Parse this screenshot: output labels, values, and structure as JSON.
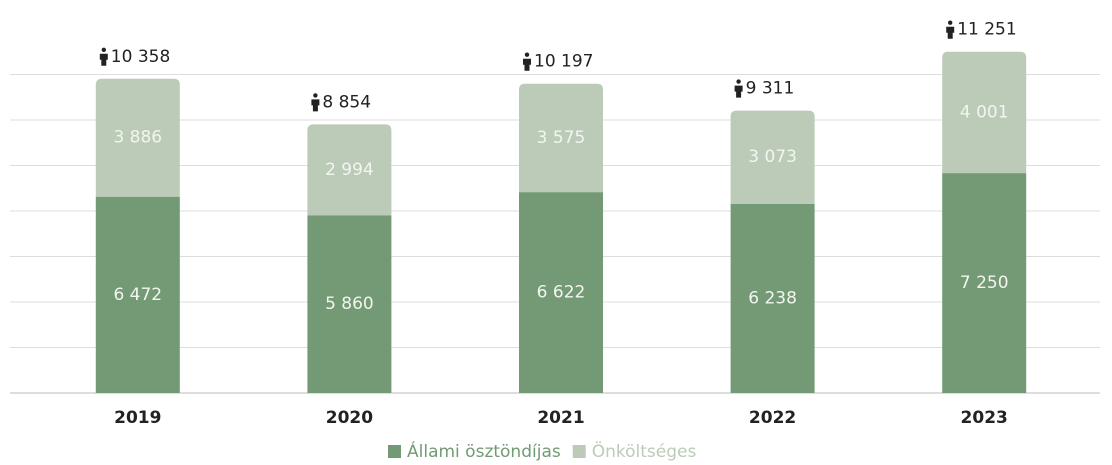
{
  "chart_data": {
    "type": "stacked_bar",
    "categories": [
      "2019",
      "2020",
      "2021",
      "2022",
      "2023"
    ],
    "series": [
      {
        "name": "Állami ösztöndíjas",
        "color": "#739a74",
        "values": [
          6472,
          5860,
          6622,
          6238,
          7250
        ],
        "value_labels": [
          "6 472",
          "5 860",
          "6 622",
          "6 238",
          "7 250"
        ]
      },
      {
        "name": "Önköltséges",
        "color": "#bccbb8",
        "values": [
          3886,
          2994,
          3575,
          3073,
          4001
        ],
        "value_labels": [
          "3 886",
          "2 994",
          "3 575",
          "3 073",
          "4 001"
        ]
      }
    ],
    "totals": [
      10358,
      8854,
      10197,
      9311,
      11251
    ],
    "total_labels": [
      "10 358",
      "8 854",
      "10 197",
      "9 311",
      "11 251"
    ],
    "ylim": [
      0,
      12000
    ],
    "yticks": [
      0,
      1500,
      3000,
      4500,
      6000,
      7500,
      9000,
      10500
    ],
    "grid": true
  }
}
